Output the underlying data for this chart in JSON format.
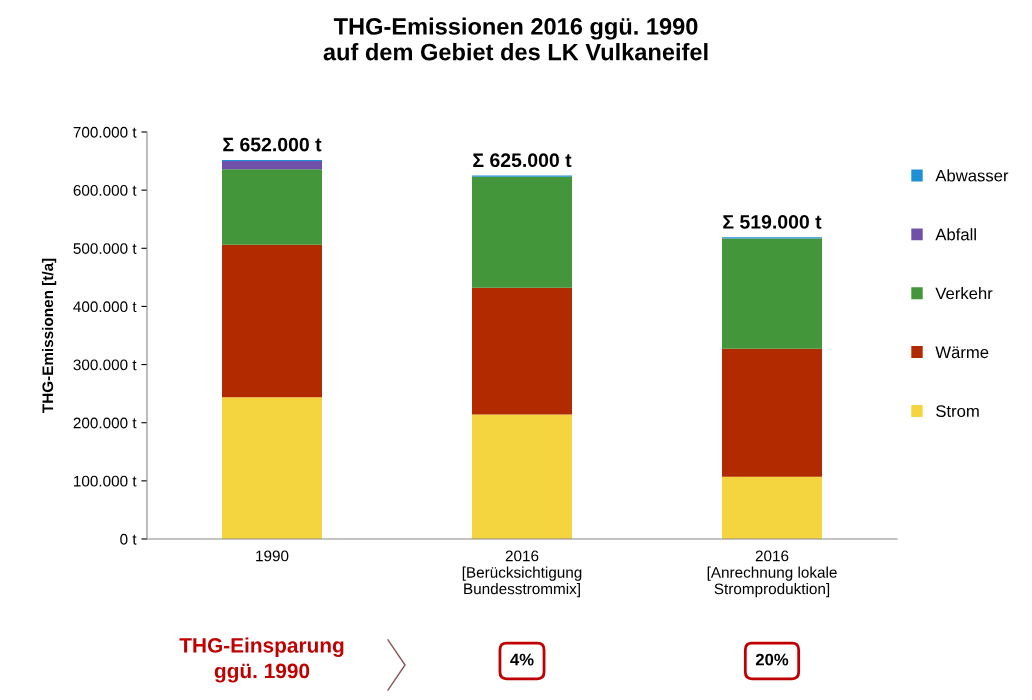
{
  "chart_data": {
    "type": "bar",
    "stacked": true,
    "title": "THG-Emissionen 2016 ggü. 1990\nauf dem Gebiet des LK Vulkaneifel",
    "ylabel": "THG-Emissionen [t/a]",
    "categories": [
      "1990",
      "2016\n[Berücksichtigung\nBundesstrommix]",
      "2016\n[Anrechnung lokale\nStromproduktion]"
    ],
    "series": [
      {
        "name": "Strom",
        "color": "#f5d53f",
        "values": [
          244000,
          214000,
          107000
        ]
      },
      {
        "name": "Wärme",
        "color": "#b22a00",
        "values": [
          262000,
          218000,
          220000
        ]
      },
      {
        "name": "Verkehr",
        "color": "#43973a",
        "values": [
          130000,
          191000,
          190000
        ]
      },
      {
        "name": "Abfall",
        "color": "#7050a8",
        "values": [
          14000,
          null,
          null
        ]
      },
      {
        "name": "Abwasser",
        "color": "#1e90d6",
        "values": [
          2000,
          2000,
          2000
        ]
      }
    ],
    "totals": [
      "Σ 652.000 t",
      "Σ 625.000 t",
      "Σ 519.000 t"
    ],
    "ylim": [
      0,
      700000
    ],
    "yticks": [
      {
        "value": 0,
        "label": "0 t"
      },
      {
        "value": 100000,
        "label": "100.000 t"
      },
      {
        "value": 200000,
        "label": "200.000 t"
      },
      {
        "value": 300000,
        "label": "300.000 t"
      },
      {
        "value": 400000,
        "label": "400.000 t"
      },
      {
        "value": 500000,
        "label": "500.000 t"
      },
      {
        "value": 600000,
        "label": "600.000 t"
      },
      {
        "value": 700000,
        "label": "700.000 t"
      }
    ],
    "grid": false,
    "legend": "right",
    "annotations": [
      "THG-Einsparung\nggü. 1990",
      "4%",
      "20%"
    ]
  }
}
